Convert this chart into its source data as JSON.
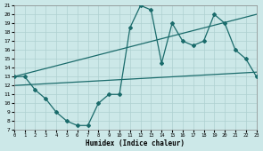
{
  "xlabel": "Humidex (Indice chaleur)",
  "bg_color": "#cce8e8",
  "grid_color": "#aed0d0",
  "line_color": "#1a6b6b",
  "xlim": [
    0,
    23
  ],
  "ylim": [
    7,
    21
  ],
  "yticks": [
    7,
    8,
    9,
    10,
    11,
    12,
    13,
    14,
    15,
    16,
    17,
    18,
    19,
    20,
    21
  ],
  "xticks": [
    0,
    1,
    2,
    3,
    4,
    5,
    6,
    7,
    8,
    9,
    10,
    11,
    12,
    13,
    14,
    15,
    16,
    17,
    18,
    19,
    20,
    21,
    22,
    23
  ],
  "line1_x": [
    0,
    1,
    2,
    3,
    4,
    5,
    6,
    7,
    8,
    9,
    10,
    11,
    12,
    13,
    14,
    15,
    16,
    17,
    18,
    19,
    20,
    21,
    22,
    23
  ],
  "line1_y": [
    13,
    13,
    11.5,
    10.5,
    9,
    8,
    7.5,
    7.5,
    10,
    11,
    11,
    18.5,
    21,
    20.5,
    14.5,
    19,
    17,
    16.5,
    17,
    20,
    19,
    16,
    15,
    13
  ],
  "line2_x": [
    0,
    23
  ],
  "line2_y": [
    13,
    20
  ],
  "line3_x": [
    0,
    23
  ],
  "line3_y": [
    12,
    13.5
  ],
  "marker_size": 2.0,
  "linewidth": 0.9
}
